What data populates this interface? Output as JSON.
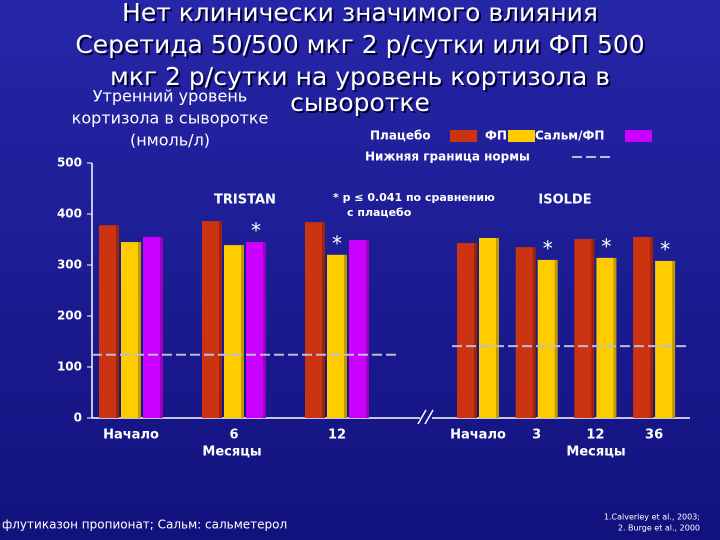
{
  "chart_data": {
    "type": "bar",
    "title": [
      "Нет клинически значимого влияния",
      "Серетида 50/500 мкг 2 р/сутки или ФП 500",
      "мкг 2 р/сутки на уровень кортизола в",
      "сыворотке"
    ],
    "y_label": [
      "Утренний уровень",
      "кортизола в сыворотке",
      "(нмоль/л)"
    ],
    "ylim": [
      0,
      500
    ],
    "yticks": [
      0,
      100,
      200,
      300,
      400,
      500
    ],
    "series": [
      {
        "name": "Плацебо",
        "color": "#cc3311"
      },
      {
        "name": "ФП",
        "color": "#ffcc00"
      },
      {
        "name": "Сальм/ФП",
        "color": "#cc00ff"
      }
    ],
    "lower_normal_label": "Нижняя граница нормы",
    "significance_marker": "*",
    "note": [
      "* p ≤ 0.041 по сравнению",
      "с плацебо"
    ],
    "panels": [
      {
        "name": "TRISTAN",
        "categories": [
          "Начало",
          "6",
          "12"
        ],
        "x_label": "Месяцы",
        "values": [
          [
            378,
            386,
            384
          ],
          [
            345,
            339,
            320
          ],
          [
            355,
            345,
            349
          ]
        ],
        "significant": [
          [
            false,
            false,
            false
          ],
          [
            false,
            false,
            true
          ],
          [
            false,
            true,
            false
          ]
        ],
        "lower_normal": 124
      },
      {
        "name": "ISOLDE",
        "categories": [
          "Начало",
          "3",
          "12",
          "36"
        ],
        "x_label": "Месяцы",
        "values": [
          [
            343,
            335,
            351,
            355
          ],
          [
            353,
            310,
            314,
            308
          ]
        ],
        "significant": [
          [
            false,
            false,
            false,
            false
          ],
          [
            false,
            true,
            true,
            true
          ]
        ],
        "lower_normal": 141
      }
    ]
  },
  "footnote": "флутиказон пропионат; Сальм: сальметерол",
  "references": [
    "1.Calverley et al., 2003;",
    "2. Burge et al., 2000"
  ]
}
